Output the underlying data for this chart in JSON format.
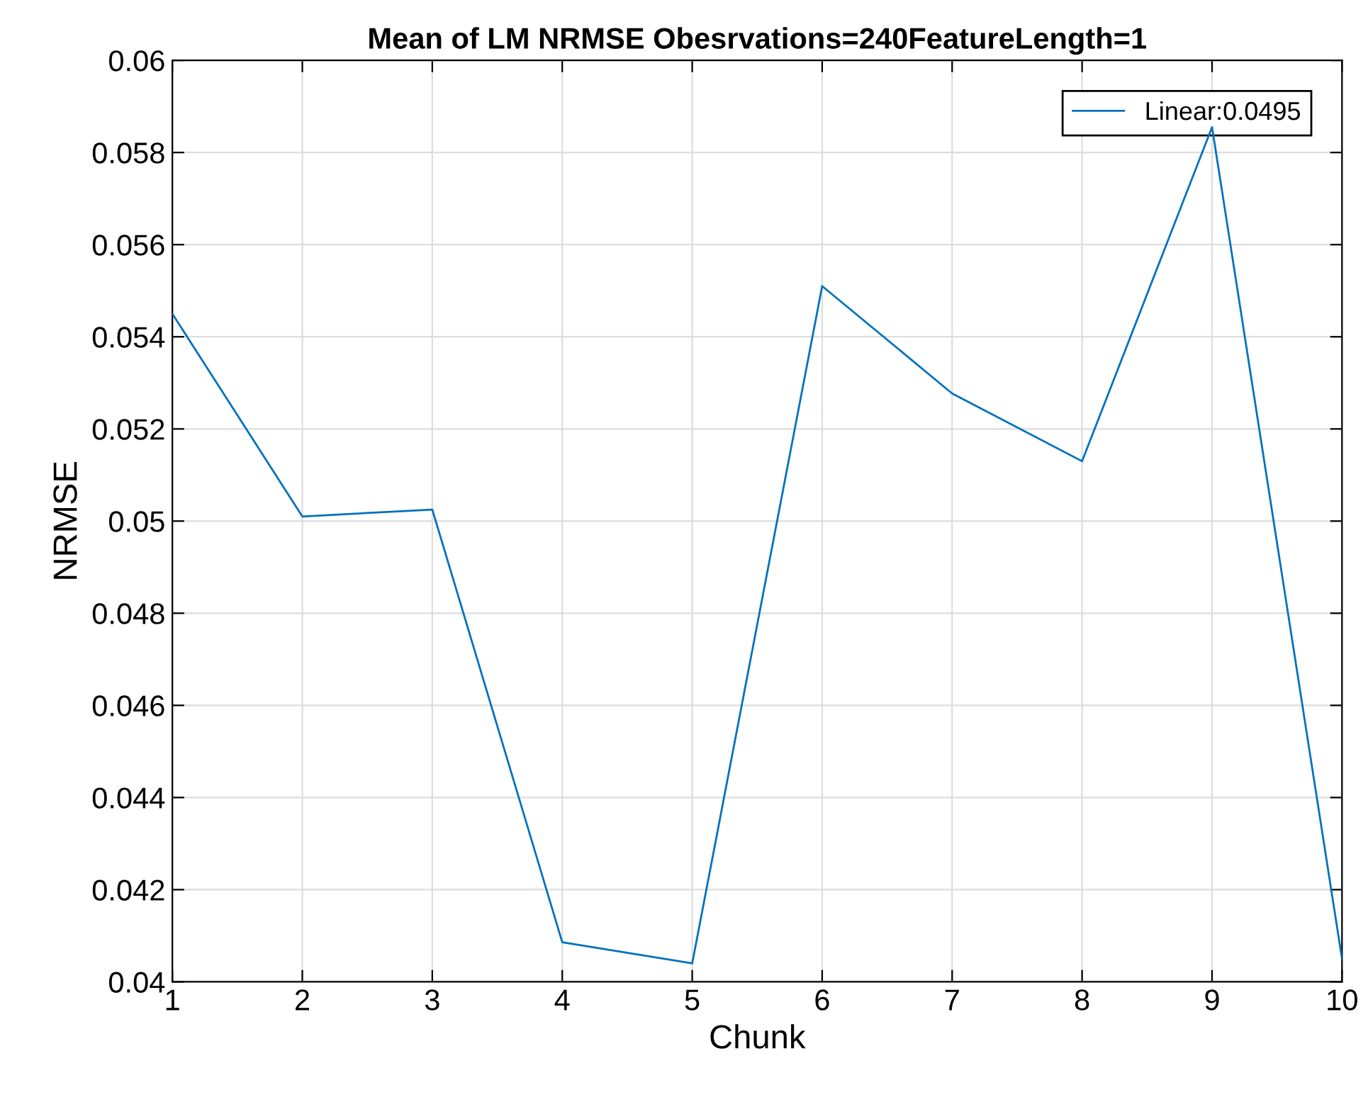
{
  "chart_data": {
    "type": "line",
    "title": "Mean of LM NRMSE Obesrvations=240FeatureLength=1",
    "xlabel": "Chunk",
    "ylabel": "NRMSE",
    "x": [
      1,
      2,
      3,
      4,
      5,
      6,
      7,
      8,
      9,
      10
    ],
    "series": [
      {
        "name": "Linear:0.0495",
        "color": "#0072bd",
        "values": [
          0.0545,
          0.0501,
          0.05025,
          0.04086,
          0.0404,
          0.0551,
          0.05277,
          0.0513,
          0.05855,
          0.0405
        ]
      }
    ],
    "xlim": [
      1,
      10
    ],
    "xticks": [
      1,
      2,
      3,
      4,
      5,
      6,
      7,
      8,
      9,
      10
    ],
    "ylim": [
      0.04,
      0.06
    ],
    "yticks": [
      0.04,
      0.042,
      0.044,
      0.046,
      0.048,
      0.05,
      0.052,
      0.054,
      0.056,
      0.058,
      0.06
    ],
    "grid": true,
    "legend": "top right",
    "marker": "none",
    "line_style": "solid"
  }
}
